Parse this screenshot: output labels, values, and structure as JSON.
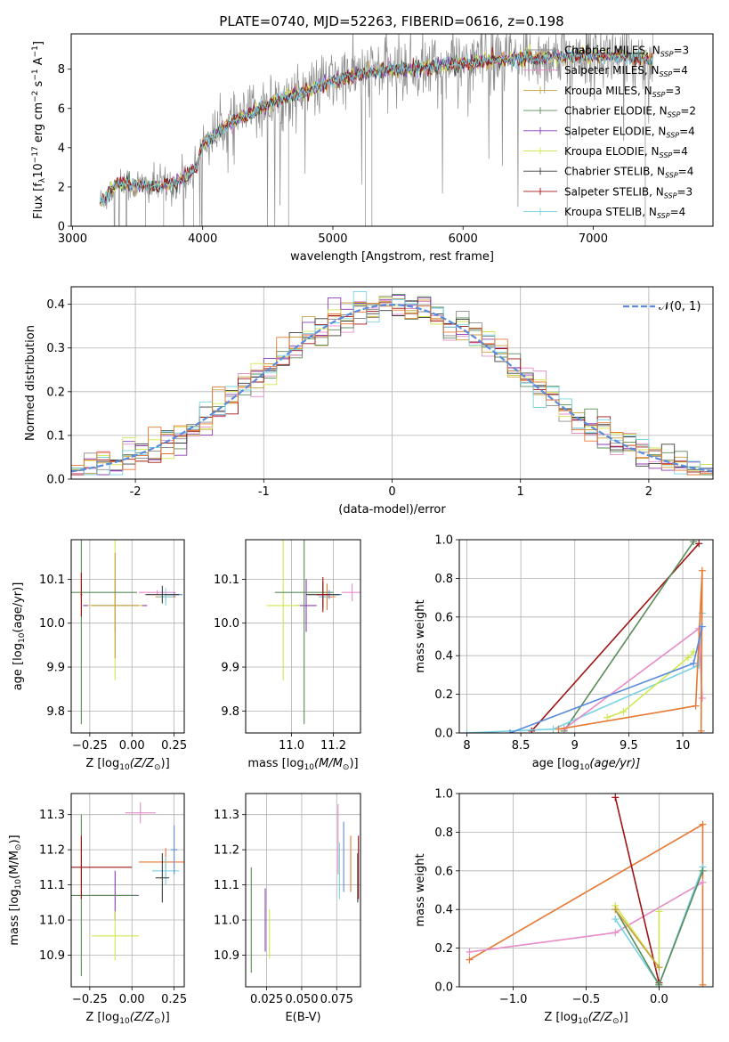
{
  "title": "PLATE=0740, MJD=52263, FIBERID=0616, z=0.198",
  "colors": {
    "chabrier_miles": "#8c8c8c",
    "salpeter_miles": "#e68cc8",
    "kroupa_miles": "#c8a03c",
    "chabrier_elodie": "#5a8c5a",
    "salpeter_elodie": "#8c3cb4",
    "kroupa_elodie": "#d2e650",
    "chabrier_stelib": "#3c3c3c",
    "salpeter_stelib": "#a01414",
    "kroupa_stelib": "#78d2e6",
    "extra_blue": "#5a8cdc",
    "extra_orange": "#e67832",
    "grid": "#b0b0b0",
    "normal_curve": "#5a8cdc"
  },
  "chart_data": [
    {
      "id": "spectrum",
      "type": "line",
      "xlabel": "wavelength [Angstrom, rest frame]",
      "ylabel_parts": [
        "Flux [f",
        "λ",
        "10",
        "−17",
        " erg cm",
        "−2",
        " s",
        "−1",
        " A",
        "−1",
        "]"
      ],
      "xlim": [
        2990,
        7920
      ],
      "ylim": [
        0,
        9.8
      ],
      "xticks": [
        3000,
        4000,
        5000,
        6000,
        7000
      ],
      "yticks": [
        0,
        2,
        4,
        6,
        8
      ],
      "data_range": [
        3210,
        7460
      ],
      "continuum": {
        "x": [
          3210,
          3350,
          3600,
          3800,
          3950,
          4000,
          4200,
          4500,
          4800,
          5000,
          5300,
          5600,
          6000,
          6300,
          6600,
          7000,
          7300,
          7460
        ],
        "y": [
          1.2,
          2.2,
          2.0,
          2.2,
          3.0,
          4.2,
          5.2,
          6.2,
          6.9,
          7.4,
          7.9,
          8.0,
          8.3,
          8.5,
          8.6,
          8.7,
          8.6,
          8.5
        ]
      },
      "legend": [
        {
          "label": "Chabrier MILES, N",
          "sub": "SSP",
          "tail": "=3",
          "color": "#8c8c8c"
        },
        {
          "label": "Salpeter MILES, N",
          "sub": "SSP",
          "tail": "=4",
          "color": "#e68cc8"
        },
        {
          "label": "Kroupa MILES, N",
          "sub": "SSP",
          "tail": "=3",
          "color": "#c8a03c"
        },
        {
          "label": "Chabrier ELODIE, N",
          "sub": "SSP",
          "tail": "=2",
          "color": "#5a8c5a"
        },
        {
          "label": "Salpeter ELODIE, N",
          "sub": "SSP",
          "tail": "=4",
          "color": "#8c3cb4"
        },
        {
          "label": "Kroupa ELODIE, N",
          "sub": "SSP",
          "tail": "=4",
          "color": "#d2e650"
        },
        {
          "label": "Chabrier STELIB, N",
          "sub": "SSP",
          "tail": "=4",
          "color": "#3c3c3c"
        },
        {
          "label": "Salpeter STELIB, N",
          "sub": "SSP",
          "tail": "=3",
          "color": "#a01414"
        },
        {
          "label": "Kroupa STELIB, N",
          "sub": "SSP",
          "tail": "=4",
          "color": "#78d2e6"
        }
      ]
    },
    {
      "id": "residuals",
      "type": "histogram",
      "xlabel": "(data-model)/error",
      "ylabel": "Normed distribution",
      "xlim": [
        -2.5,
        2.5
      ],
      "ylim": [
        0,
        0.44
      ],
      "xticks": [
        -2,
        -1,
        0,
        1,
        2
      ],
      "yticks": [
        0.0,
        0.1,
        0.2,
        0.3,
        0.4
      ],
      "bin_width": 0.1,
      "legend": "𝒩(0, 1)"
    },
    {
      "id": "age_vs_Z",
      "type": "errorbar",
      "xlabel_parts": [
        "Z [log",
        "10",
        "(Z/Z",
        "⊙",
        ")]"
      ],
      "ylabel_parts": [
        "age  [log",
        "10",
        "(age/yr)]"
      ],
      "xlim": [
        -0.36,
        0.31
      ],
      "ylim": [
        9.75,
        10.19
      ],
      "xticks": [
        -0.25,
        0.0,
        0.25
      ],
      "xtick_labels": [
        "−0.25",
        "0.00",
        "0.25"
      ],
      "yticks": [
        9.8,
        9.9,
        10.0,
        10.1
      ],
      "points": [
        {
          "x": -0.1,
          "y": 10.04,
          "xerr": 0.19,
          "yerr": 0.06,
          "color": "#8c3cb4"
        },
        {
          "x": -0.1,
          "y": 10.04,
          "xerr": 0.16,
          "yerr": 0.17,
          "color": "#d2e650"
        },
        {
          "x": -0.1,
          "y": 10.04,
          "xerr": 0.14,
          "yerr": 0.12,
          "color": "#c8a03c"
        },
        {
          "x": -0.3,
          "y": 10.07,
          "xerr": 0.33,
          "yerr": 0.3,
          "color": "#5a8c5a"
        },
        {
          "x": 0.15,
          "y": 10.07,
          "xerr": 0.11,
          "yerr": 0.005,
          "color": "#e68cc8"
        },
        {
          "x": 0.2,
          "y": 10.06,
          "xerr": 0.06,
          "yerr": 0.01,
          "color": "#e67832"
        },
        {
          "x": 0.2,
          "y": 10.06,
          "xerr": 0.04,
          "yerr": 0.02,
          "color": "#78d2e6"
        },
        {
          "x": 0.25,
          "y": 10.065,
          "xerr": 0.05,
          "yerr": 0.005,
          "color": "#5a8cdc"
        },
        {
          "x": 0.18,
          "y": 10.065,
          "xerr": 0.1,
          "yerr": 0.02,
          "color": "#3c3c3c"
        },
        {
          "x": -0.3,
          "y": 10.065,
          "xerr": 0.005,
          "yerr": 0.05,
          "color": "#a01414"
        }
      ]
    },
    {
      "id": "age_vs_mass",
      "type": "errorbar",
      "xlabel_parts": [
        "mass [log",
        "10",
        "(M/M",
        "⊙",
        ")]"
      ],
      "ylabel": "",
      "xlim": [
        10.78,
        11.33
      ],
      "ylim": [
        9.75,
        10.19
      ],
      "xticks": [
        11.0,
        11.2
      ],
      "xtick_labels": [
        "11.0",
        "11.2"
      ],
      "yticks": [
        9.8,
        9.9,
        10.0,
        10.1
      ],
      "points": [
        {
          "x": 11.07,
          "y": 10.04,
          "xerr": 0.05,
          "yerr": 0.06,
          "color": "#8c3cb4"
        },
        {
          "x": 10.96,
          "y": 10.04,
          "xerr": 0.08,
          "yerr": 0.17,
          "color": "#d2e650"
        },
        {
          "x": 11.06,
          "y": 10.07,
          "xerr": 0.14,
          "yerr": 0.3,
          "color": "#5a8c5a"
        },
        {
          "x": 11.29,
          "y": 10.07,
          "xerr": 0.05,
          "yerr": 0.02,
          "color": "#e68cc8"
        },
        {
          "x": 11.17,
          "y": 10.06,
          "xerr": 0.04,
          "yerr": 0.03,
          "color": "#e67832"
        },
        {
          "x": 11.15,
          "y": 10.06,
          "xerr": 0.02,
          "yerr": 0.03,
          "color": "#78d2e6"
        },
        {
          "x": 11.18,
          "y": 10.065,
          "xerr": 0.06,
          "yerr": 0.01,
          "color": "#5a8cdc"
        },
        {
          "x": 11.15,
          "y": 10.065,
          "xerr": 0.08,
          "yerr": 0.03,
          "color": "#3c3c3c"
        },
        {
          "x": 11.15,
          "y": 10.065,
          "xerr": 0.03,
          "yerr": 0.04,
          "color": "#a01414"
        }
      ]
    },
    {
      "id": "mass_weight_vs_age",
      "type": "line",
      "xlabel_parts": [
        "age  [log",
        "10",
        "(age/yr)]"
      ],
      "ylabel": "mass weight",
      "xlim": [
        7.93,
        10.28
      ],
      "ylim": [
        0,
        1.0
      ],
      "xticks": [
        8.0,
        8.5,
        9.0,
        9.5,
        10.0
      ],
      "yticks": [
        0.0,
        0.2,
        0.4,
        0.6,
        0.8,
        1.0
      ],
      "series": [
        {
          "color": "#a01414",
          "x": [
            8.6,
            10.15
          ],
          "y": [
            0.01,
            0.98
          ]
        },
        {
          "color": "#5a8c5a",
          "x": [
            8.9,
            10.1
          ],
          "y": [
            0.01,
            0.99
          ]
        },
        {
          "color": "#78d2e6",
          "x": [
            8.0,
            8.8,
            10.15,
            10.18
          ],
          "y": [
            0.0,
            0.02,
            0.35,
            0.62
          ]
        },
        {
          "color": "#e68cc8",
          "x": [
            8.9,
            10.15,
            10.18
          ],
          "y": [
            0.02,
            0.54,
            0.18
          ]
        },
        {
          "color": "#d2e650",
          "x": [
            9.3,
            9.45,
            10.05,
            10.1
          ],
          "y": [
            0.08,
            0.11,
            0.39,
            0.42
          ]
        },
        {
          "color": "#e67832",
          "x": [
            8.85,
            10.12,
            10.18,
            10.17
          ],
          "y": [
            0.02,
            0.14,
            0.84,
            0.01
          ]
        },
        {
          "color": "#5a8cdc",
          "x": [
            8.4,
            10.1,
            10.18
          ],
          "y": [
            0.0,
            0.36,
            0.55
          ]
        }
      ]
    },
    {
      "id": "mass_vs_Z",
      "type": "errorbar",
      "xlabel_parts": [
        "Z [log",
        "10",
        "(Z/Z",
        "⊙",
        ")]"
      ],
      "ylabel_parts": [
        "mass [log",
        "10",
        "(M/M",
        "⊙",
        ")]"
      ],
      "xlim": [
        -0.36,
        0.31
      ],
      "ylim": [
        10.81,
        11.36
      ],
      "xticks": [
        -0.25,
        0.0,
        0.25
      ],
      "xtick_labels": [
        "−0.25",
        "0.00",
        "0.25"
      ],
      "yticks": [
        10.9,
        11.0,
        11.1,
        11.2,
        11.3
      ],
      "points": [
        {
          "x": -0.1,
          "y": 11.07,
          "xerr": 0.14,
          "yerr": 0.07,
          "color": "#8c3cb4"
        },
        {
          "x": -0.1,
          "y": 10.955,
          "xerr": 0.14,
          "yerr": 0.07,
          "color": "#d2e650"
        },
        {
          "x": -0.3,
          "y": 11.07,
          "xerr": 0.33,
          "yerr": 0.23,
          "color": "#5a8c5a"
        },
        {
          "x": 0.05,
          "y": 11.305,
          "xerr": 0.09,
          "yerr": 0.03,
          "color": "#e68cc8"
        },
        {
          "x": 0.2,
          "y": 11.165,
          "xerr": 0.16,
          "yerr": 0.04,
          "color": "#e67832"
        },
        {
          "x": 0.2,
          "y": 11.14,
          "xerr": 0.08,
          "yerr": 0.04,
          "color": "#78d2e6"
        },
        {
          "x": 0.25,
          "y": 11.2,
          "xerr": 0.02,
          "yerr": 0.07,
          "color": "#5a8cdc"
        },
        {
          "x": 0.18,
          "y": 11.12,
          "xerr": 0.04,
          "yerr": 0.07,
          "color": "#3c3c3c"
        },
        {
          "x": -0.3,
          "y": 11.15,
          "xerr": 0.3,
          "yerr": 0.09,
          "color": "#a01414"
        }
      ]
    },
    {
      "id": "mass_vs_ebv",
      "type": "errorbar",
      "xlabel": "E(B-V)",
      "ylabel": "",
      "xlim": [
        0.01,
        0.092
      ],
      "ylim": [
        10.81,
        11.36
      ],
      "xticks": [
        0.025,
        0.05,
        0.075
      ],
      "xtick_labels": [
        "0.025",
        "0.050",
        "0.075"
      ],
      "yticks": [
        10.9,
        11.0,
        11.1,
        11.2,
        11.3
      ],
      "points": [
        {
          "x": 0.014,
          "y": 11.0,
          "xerr": 0.0,
          "yerr": 0.15,
          "color": "#5a8c5a"
        },
        {
          "x": 0.024,
          "y": 11.0,
          "xerr": 0.0,
          "yerr": 0.09,
          "color": "#8c3cb4"
        },
        {
          "x": 0.027,
          "y": 10.96,
          "xerr": 0.0,
          "yerr": 0.07,
          "color": "#d2e650"
        },
        {
          "x": 0.076,
          "y": 11.23,
          "xerr": 0.0,
          "yerr": 0.1,
          "color": "#e68cc8"
        },
        {
          "x": 0.077,
          "y": 11.14,
          "xerr": 0.0,
          "yerr": 0.08,
          "color": "#78d2e6"
        },
        {
          "x": 0.08,
          "y": 11.18,
          "xerr": 0.0,
          "yerr": 0.1,
          "color": "#5a8cdc"
        },
        {
          "x": 0.085,
          "y": 11.16,
          "xerr": 0.0,
          "yerr": 0.08,
          "color": "#e67832"
        },
        {
          "x": 0.09,
          "y": 11.12,
          "xerr": 0.0,
          "yerr": 0.07,
          "color": "#3c3c3c"
        },
        {
          "x": 0.0905,
          "y": 11.15,
          "xerr": 0.0,
          "yerr": 0.09,
          "color": "#a01414"
        }
      ]
    },
    {
      "id": "mass_weight_vs_Z",
      "type": "line",
      "xlabel_parts": [
        "Z [log",
        "10",
        "(Z/Z",
        "⊙",
        ")]"
      ],
      "ylabel": "mass weight",
      "xlim": [
        -1.37,
        0.37
      ],
      "ylim": [
        0,
        1.0
      ],
      "xticks": [
        -1.0,
        -0.5,
        0.0
      ],
      "xtick_labels": [
        "−1.0",
        "−0.5",
        "0.0"
      ],
      "yticks": [
        0.0,
        0.2,
        0.4,
        0.6,
        0.8,
        1.0
      ],
      "series": [
        {
          "color": "#e67832",
          "x": [
            -1.3,
            0.3,
            0.3
          ],
          "y": [
            0.14,
            0.84,
            0.01
          ]
        },
        {
          "color": "#e68cc8",
          "x": [
            -1.3,
            -0.3,
            0.3
          ],
          "y": [
            0.18,
            0.28,
            0.54
          ]
        },
        {
          "color": "#a01414",
          "x": [
            -0.3,
            0.0
          ],
          "y": [
            0.98,
            0.02
          ]
        },
        {
          "color": "#78d2e6",
          "x": [
            -0.3,
            0.0,
            0.3
          ],
          "y": [
            0.35,
            0.01,
            0.62
          ]
        },
        {
          "color": "#5a8c5a",
          "x": [
            -0.3,
            0.0,
            0.3
          ],
          "y": [
            0.4,
            0.01,
            0.6
          ]
        },
        {
          "color": "#d2e650",
          "x": [
            -0.3,
            0.0,
            0.0
          ],
          "y": [
            0.42,
            0.1,
            0.39
          ]
        },
        {
          "color": "#c8a03c",
          "x": [
            -0.3,
            0.0
          ],
          "y": [
            0.4,
            0.1
          ]
        }
      ]
    }
  ]
}
